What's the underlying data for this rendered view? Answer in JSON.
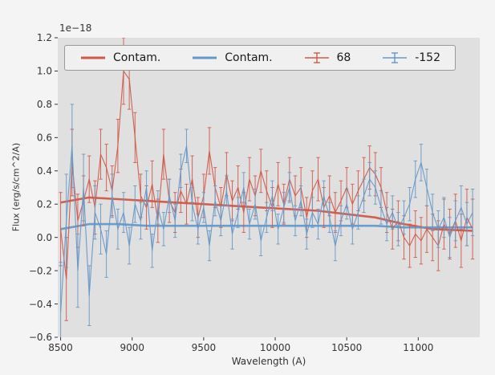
{
  "chart_data": {
    "type": "line",
    "title": "",
    "xlabel": "Wavelength (A)",
    "ylabel": "Flux (erg/s/cm^2/A)",
    "offset_text": "1e−18",
    "xlim": [
      8480,
      11430
    ],
    "ylim": [
      -0.6,
      1.2
    ],
    "grid": false,
    "legend_position": "top-inside-horizontal",
    "colors": {
      "red": "#d05848",
      "blue": "#6598c8",
      "plot_bg": "#e0e0e0",
      "figure_bg": "#f4f4f4",
      "legend_bg": "#f0f0f0"
    },
    "x_ticks": {
      "values": [
        8500,
        9000,
        9500,
        10000,
        10500,
        11000
      ],
      "labels": [
        "8500",
        "9000",
        "9500",
        "10000",
        "10500",
        "11000"
      ]
    },
    "y_ticks": {
      "values": [
        -0.6,
        -0.4,
        -0.2,
        0.0,
        0.2,
        0.4,
        0.6,
        0.8,
        1.0,
        1.2
      ],
      "labels": [
        "−0.6",
        "−0.4",
        "−0.2",
        "0.0",
        "0.2",
        "0.4",
        "0.6",
        "0.8",
        "1.0",
        "1.2"
      ]
    },
    "legend": {
      "items": [
        {
          "label": "Contam.",
          "glyph": "line",
          "color": "red"
        },
        {
          "label": "Contam.",
          "glyph": "line",
          "color": "blue"
        },
        {
          "label": "68",
          "glyph": "errorbar",
          "color": "red"
        },
        {
          "label": "-152",
          "glyph": "errorbar",
          "color": "blue"
        }
      ]
    },
    "x_spec": [
      8500,
      8540,
      8580,
      8620,
      8660,
      8700,
      8740,
      8780,
      8820,
      8860,
      8900,
      8940,
      8980,
      9020,
      9060,
      9100,
      9140,
      9180,
      9220,
      9260,
      9300,
      9340,
      9380,
      9420,
      9460,
      9500,
      9540,
      9580,
      9620,
      9660,
      9700,
      9740,
      9780,
      9820,
      9860,
      9900,
      9940,
      9980,
      10020,
      10060,
      10100,
      10140,
      10180,
      10220,
      10260,
      10300,
      10340,
      10380,
      10420,
      10460,
      10500,
      10540,
      10580,
      10620,
      10660,
      10700,
      10740,
      10780,
      10820,
      10860,
      10900,
      10940,
      10980,
      11020,
      11060,
      11100,
      11140,
      11180,
      11220,
      11260,
      11300,
      11340,
      11380
    ],
    "series": [
      {
        "name": "contam-red",
        "label": "Contam.",
        "type": "line",
        "color": "red",
        "lw": 2.6,
        "x": [
          8500,
          8700,
          8900,
          9100,
          9300,
          9500,
          9700,
          9900,
          10100,
          10300,
          10500,
          10700,
          10900,
          11100,
          11380
        ],
        "values": [
          0.21,
          0.24,
          0.23,
          0.22,
          0.21,
          0.2,
          0.19,
          0.18,
          0.17,
          0.16,
          0.14,
          0.12,
          0.08,
          0.05,
          0.04
        ]
      },
      {
        "name": "contam-blue",
        "label": "Contam.",
        "type": "line",
        "color": "blue",
        "lw": 2.6,
        "x": [
          8500,
          8700,
          8900,
          9100,
          9300,
          9500,
          9700,
          9900,
          10100,
          10300,
          10500,
          10700,
          10900,
          11100,
          11380
        ],
        "values": [
          0.05,
          0.08,
          0.08,
          0.07,
          0.07,
          0.07,
          0.07,
          0.07,
          0.07,
          0.07,
          0.07,
          0.07,
          0.06,
          0.06,
          0.06
        ]
      },
      {
        "name": "spec-68",
        "label": "68",
        "type": "errorbar",
        "color": "red",
        "lw": 1.1,
        "x": "x_spec",
        "values": [
          0.05,
          -0.25,
          0.45,
          0.1,
          0.22,
          0.35,
          0.18,
          0.5,
          0.42,
          0.28,
          0.55,
          1.0,
          0.95,
          0.6,
          0.25,
          0.18,
          0.32,
          0.1,
          0.5,
          0.22,
          0.15,
          0.28,
          0.2,
          0.35,
          0.12,
          0.25,
          0.52,
          0.3,
          0.18,
          0.38,
          0.22,
          0.3,
          0.15,
          0.35,
          0.25,
          0.4,
          0.28,
          0.18,
          0.32,
          0.2,
          0.35,
          0.25,
          0.3,
          0.12,
          0.28,
          0.35,
          0.18,
          0.25,
          0.15,
          0.22,
          0.3,
          0.2,
          0.28,
          0.35,
          0.42,
          0.38,
          0.3,
          0.15,
          0.05,
          0.1,
          0.0,
          -0.05,
          0.02,
          -0.02,
          0.05,
          0.0,
          -0.05,
          0.08,
          0.02,
          0.1,
          -0.02,
          0.12,
          0.05
        ],
        "err": [
          0.22,
          0.25,
          0.2,
          0.16,
          0.15,
          0.14,
          0.16,
          0.15,
          0.14,
          0.15,
          0.16,
          0.2,
          0.18,
          0.15,
          0.13,
          0.13,
          0.14,
          0.13,
          0.15,
          0.13,
          0.12,
          0.13,
          0.12,
          0.14,
          0.12,
          0.13,
          0.14,
          0.12,
          0.12,
          0.13,
          0.12,
          0.13,
          0.12,
          0.13,
          0.12,
          0.13,
          0.12,
          0.12,
          0.13,
          0.12,
          0.13,
          0.12,
          0.12,
          0.12,
          0.12,
          0.13,
          0.12,
          0.12,
          0.12,
          0.12,
          0.12,
          0.12,
          0.12,
          0.13,
          0.13,
          0.13,
          0.12,
          0.12,
          0.12,
          0.12,
          0.13,
          0.13,
          0.14,
          0.14,
          0.14,
          0.14,
          0.15,
          0.15,
          0.15,
          0.16,
          0.16,
          0.17,
          0.18
        ]
      },
      {
        "name": "spec-minus152",
        "label": "-152",
        "type": "errorbar",
        "color": "blue",
        "lw": 1.1,
        "x": "x_spec",
        "values": [
          -0.45,
          0.1,
          0.55,
          -0.2,
          0.3,
          -0.35,
          0.15,
          0.05,
          -0.1,
          0.25,
          0.05,
          0.15,
          -0.05,
          0.2,
          0.1,
          0.3,
          -0.08,
          0.18,
          0.05,
          0.25,
          0.1,
          0.4,
          0.55,
          0.2,
          0.05,
          0.18,
          -0.05,
          0.22,
          0.1,
          0.28,
          0.02,
          0.15,
          0.3,
          0.08,
          0.2,
          -0.02,
          0.12,
          0.25,
          0.05,
          0.18,
          0.3,
          0.1,
          0.22,
          0.02,
          0.15,
          0.08,
          0.25,
          0.12,
          -0.05,
          0.1,
          0.2,
          0.05,
          0.15,
          0.25,
          0.35,
          0.3,
          0.18,
          0.08,
          0.15,
          0.05,
          0.12,
          0.2,
          0.35,
          0.45,
          0.3,
          0.15,
          0.05,
          0.12,
          0.0,
          0.1,
          0.18,
          0.08,
          0.15
        ],
        "err": [
          0.3,
          0.28,
          0.25,
          0.22,
          0.2,
          0.18,
          0.16,
          0.15,
          0.14,
          0.13,
          0.12,
          0.12,
          0.11,
          0.11,
          0.11,
          0.1,
          0.1,
          0.1,
          0.1,
          0.1,
          0.1,
          0.1,
          0.1,
          0.1,
          0.09,
          0.09,
          0.09,
          0.09,
          0.09,
          0.09,
          0.09,
          0.09,
          0.09,
          0.09,
          0.09,
          0.09,
          0.09,
          0.09,
          0.09,
          0.09,
          0.09,
          0.09,
          0.09,
          0.09,
          0.09,
          0.09,
          0.09,
          0.09,
          0.09,
          0.09,
          0.09,
          0.09,
          0.1,
          0.1,
          0.1,
          0.1,
          0.1,
          0.1,
          0.1,
          0.1,
          0.1,
          0.1,
          0.11,
          0.11,
          0.11,
          0.11,
          0.11,
          0.12,
          0.12,
          0.12,
          0.13,
          0.13,
          0.14
        ]
      }
    ]
  }
}
